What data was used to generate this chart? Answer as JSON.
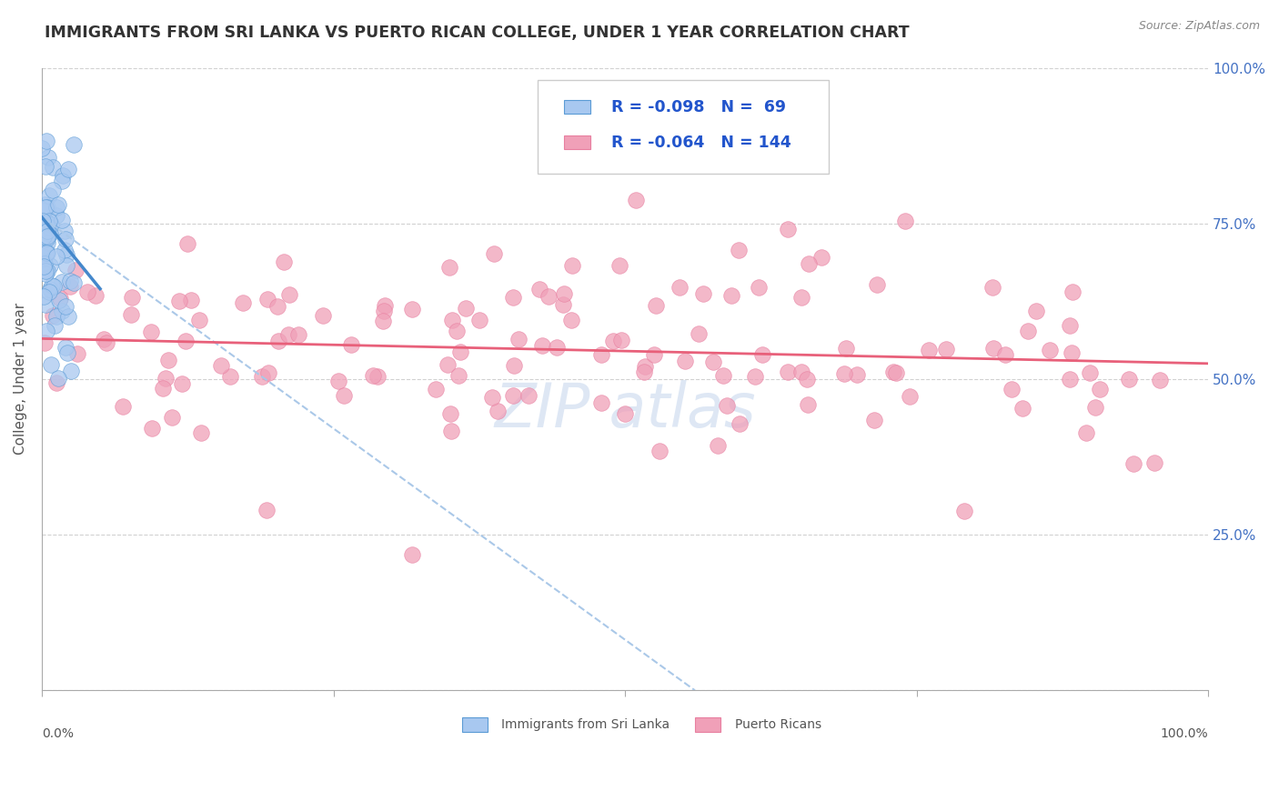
{
  "title": "IMMIGRANTS FROM SRI LANKA VS PUERTO RICAN COLLEGE, UNDER 1 YEAR CORRELATION CHART",
  "source": "Source: ZipAtlas.com",
  "ylabel": "College, Under 1 year",
  "legend_label1": "Immigrants from Sri Lanka",
  "legend_label2": "Puerto Ricans",
  "R1": "-0.098",
  "N1": "69",
  "R2": "-0.064",
  "N2": "144",
  "color_blue": "#a8c8f0",
  "color_pink": "#f0a0b8",
  "color_blue_dark": "#5b9bd5",
  "color_pink_dark": "#e87fa0",
  "line_blue": "#4488cc",
  "line_pink": "#e8607a",
  "line_dashed": "#aac8e8",
  "watermark_color": "#c8d8ee",
  "background_color": "#ffffff"
}
